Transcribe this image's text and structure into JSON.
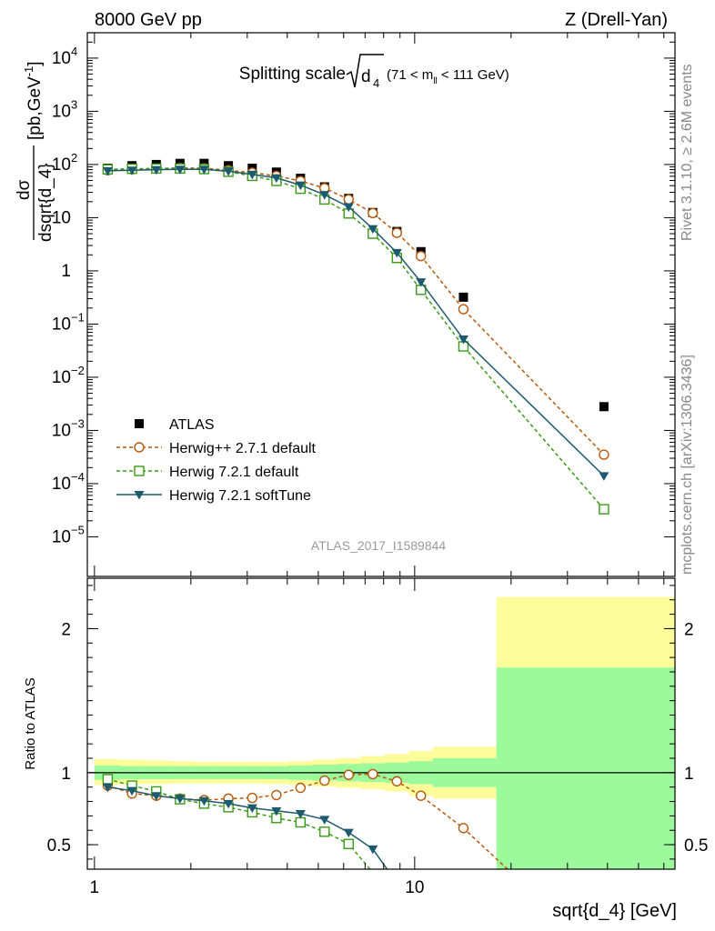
{
  "header": {
    "left": "8000 GeV pp",
    "right": "Z (Drell-Yan)"
  },
  "side_labels": {
    "rivet": "Rivet 3.1.10, ≥ 2.6M events",
    "mcplots": "mcplots.cern.ch [arXiv:1306.3436]"
  },
  "watermark": "ATLAS_2017_I1589844",
  "chart_data": [
    {
      "type": "scatter",
      "title_main": "Splitting scale",
      "title_var": "d",
      "title_var_sub": "4",
      "title_range_pre": "(71 < m",
      "title_range_sub": "ll",
      "title_range_post": " < 111 GeV)",
      "ylabel_num": "dσ",
      "ylabel_den": "dsqrt{d_4}",
      "ylabel_unit": "[pb,GeV",
      "ylabel_unit_sup": "-1",
      "ylabel_unit_close": "]",
      "yscale": "log",
      "xscale": "log",
      "ylim": [
        1.8e-06,
        30000
      ],
      "xlim": [
        0.95,
        65
      ],
      "yticks": [
        {
          "v": 10000.0,
          "label": "10",
          "sup": "4"
        },
        {
          "v": 1000.0,
          "label": "10",
          "sup": "3"
        },
        {
          "v": 100.0,
          "label": "10",
          "sup": "2"
        },
        {
          "v": 10,
          "label": "10",
          "sup": ""
        },
        {
          "v": 1,
          "label": "1",
          "sup": ""
        },
        {
          "v": 0.1,
          "label": "10",
          "sup": "−1"
        },
        {
          "v": 0.01,
          "label": "10",
          "sup": "−2"
        },
        {
          "v": 0.001,
          "label": "10",
          "sup": "−3"
        },
        {
          "v": 0.0001,
          "label": "10",
          "sup": "−4"
        },
        {
          "v": 1e-05,
          "label": "10",
          "sup": "−5"
        }
      ],
      "legend_position": "bottom-left",
      "series": [
        {
          "name": "ATLAS",
          "color": "#000000",
          "marker": "square-filled",
          "x": [
            1.1,
            1.31,
            1.56,
            1.85,
            2.2,
            2.62,
            3.11,
            3.7,
            4.4,
            5.23,
            6.22,
            7.4,
            8.8,
            10.46,
            14.2,
            39.0
          ],
          "y": [
            85,
            95,
            100,
            105,
            105,
            95,
            85,
            72,
            55,
            38,
            23,
            12.5,
            5.5,
            2.3,
            0.32,
            0.0028
          ]
        },
        {
          "name": "Herwig++ 2.7.1 default",
          "color": "#b8580a",
          "marker": "circle-open",
          "dash": "4,3",
          "x": [
            1.1,
            1.31,
            1.56,
            1.85,
            2.2,
            2.62,
            3.11,
            3.7,
            4.4,
            5.23,
            6.22,
            7.4,
            8.8,
            10.46,
            14.2,
            39.0
          ],
          "y": [
            78,
            81,
            84,
            86,
            85,
            78,
            70,
            61,
            49,
            36,
            22,
            12.2,
            5.2,
            1.9,
            0.19,
            0.00035
          ]
        },
        {
          "name": "Herwig 7.2.1 default",
          "color": "#3a9a16",
          "marker": "square-open",
          "dash": "4,3",
          "x": [
            1.1,
            1.31,
            1.56,
            1.85,
            2.2,
            2.62,
            3.11,
            3.7,
            4.4,
            5.23,
            6.22,
            7.4,
            8.8,
            10.46,
            14.2,
            39.0
          ],
          "y": [
            81,
            83,
            84,
            84,
            82,
            73,
            61,
            49,
            35,
            22,
            12,
            5,
            1.75,
            0.44,
            0.038,
            3.3e-05
          ]
        },
        {
          "name": "Herwig 7.2.1 softTune",
          "color": "#1d5a6e",
          "marker": "triangle-down",
          "dash": "",
          "x": [
            1.1,
            1.31,
            1.56,
            1.85,
            2.2,
            2.62,
            3.11,
            3.7,
            4.4,
            5.23,
            6.22,
            7.4,
            8.8,
            10.46,
            14.2,
            39.0
          ],
          "y": [
            76,
            78,
            80,
            81,
            81,
            75,
            65,
            56,
            41,
            27,
            16,
            6.2,
            2.2,
            0.62,
            0.052,
            0.00014
          ]
        }
      ]
    },
    {
      "type": "line",
      "ylabel": "Ratio to ATLAS",
      "xlabel": "sqrt{d_4} [GeV]",
      "xscale": "log",
      "ylim": [
        0.33,
        2.35
      ],
      "xlim": [
        0.95,
        65
      ],
      "xticks": [
        {
          "v": 1,
          "label": "1"
        },
        {
          "v": 10,
          "label": "10"
        }
      ],
      "yticks": [
        {
          "v": 0.5,
          "label": "0.5"
        },
        {
          "v": 1,
          "label": "1"
        },
        {
          "v": 2,
          "label": "2"
        }
      ],
      "bands": {
        "edges": [
          1.0,
          1.2,
          1.43,
          1.7,
          2.02,
          2.4,
          2.85,
          3.39,
          4.03,
          4.79,
          5.7,
          6.78,
          8.06,
          9.58,
          11.39,
          18.0,
          65.0
        ],
        "inner_color": "#9cf99c",
        "outer_color": "#fcfc9a",
        "inner_lo": [
          0.95,
          0.955,
          0.955,
          0.955,
          0.955,
          0.955,
          0.955,
          0.955,
          0.95,
          0.945,
          0.94,
          0.935,
          0.93,
          0.92,
          0.9,
          0.33
        ],
        "inner_hi": [
          1.05,
          1.045,
          1.045,
          1.045,
          1.045,
          1.045,
          1.045,
          1.045,
          1.05,
          1.055,
          1.06,
          1.065,
          1.07,
          1.08,
          1.1,
          1.73
        ],
        "outer_lo": [
          0.915,
          0.92,
          0.92,
          0.925,
          0.925,
          0.925,
          0.925,
          0.92,
          0.915,
          0.905,
          0.895,
          0.885,
          0.87,
          0.84,
          0.82,
          0.33
        ],
        "outer_hi": [
          1.095,
          1.09,
          1.085,
          1.08,
          1.075,
          1.075,
          1.075,
          1.075,
          1.08,
          1.09,
          1.1,
          1.115,
          1.13,
          1.15,
          1.18,
          2.22
        ]
      },
      "series": [
        {
          "name": "Herwig++ 2.7.1 default",
          "color": "#b8580a",
          "marker": "circle-open",
          "dash": "4,3",
          "x": [
            1.1,
            1.31,
            1.56,
            1.85,
            2.2,
            2.62,
            3.11,
            3.7,
            4.4,
            5.23,
            6.22,
            7.4,
            8.8,
            10.46,
            14.2,
            19.5
          ],
          "y": [
            0.91,
            0.855,
            0.84,
            0.82,
            0.81,
            0.82,
            0.825,
            0.845,
            0.895,
            0.945,
            0.985,
            0.99,
            0.94,
            0.84,
            0.615,
            0.33
          ]
        },
        {
          "name": "Herwig 7.2.1 default",
          "color": "#3a9a16",
          "marker": "square-open",
          "dash": "4,3",
          "x": [
            1.1,
            1.31,
            1.56,
            1.85,
            2.2,
            2.62,
            3.11,
            3.7,
            4.4,
            5.23,
            6.22,
            7.25
          ],
          "y": [
            0.955,
            0.91,
            0.87,
            0.815,
            0.785,
            0.76,
            0.725,
            0.685,
            0.655,
            0.59,
            0.505,
            0.33
          ]
        },
        {
          "name": "Herwig 7.2.1 softTune",
          "color": "#1d5a6e",
          "marker": "triangle-down",
          "dash": "",
          "x": [
            1.1,
            1.31,
            1.56,
            1.85,
            2.2,
            2.62,
            3.11,
            3.7,
            4.4,
            5.23,
            6.22,
            7.4,
            8.2
          ],
          "y": [
            0.9,
            0.875,
            0.84,
            0.82,
            0.805,
            0.785,
            0.755,
            0.735,
            0.715,
            0.675,
            0.585,
            0.47,
            0.33
          ]
        }
      ]
    }
  ]
}
